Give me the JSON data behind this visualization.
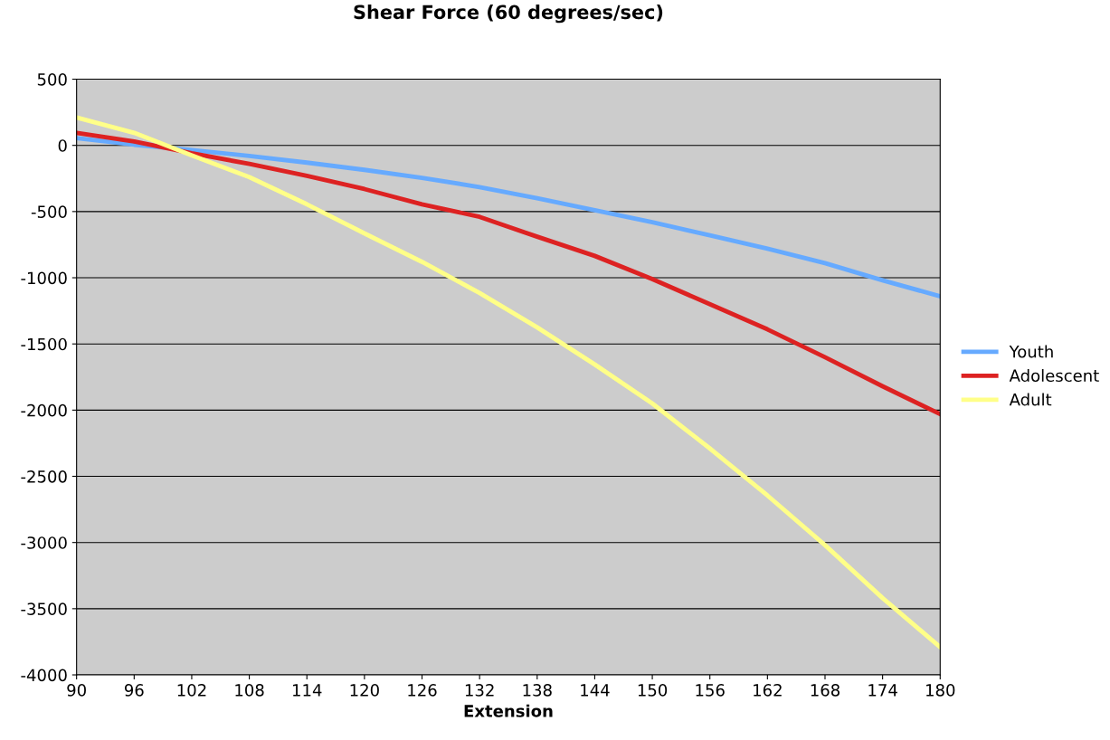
{
  "chart_data": {
    "type": "line",
    "title": "Shear Force (60 degrees/sec)",
    "xlabel": "Extension",
    "x": [
      90,
      96,
      102,
      108,
      114,
      120,
      126,
      132,
      138,
      144,
      150,
      156,
      162,
      168,
      174,
      180
    ],
    "series": [
      {
        "name": "Youth",
        "color": "#66aaff",
        "values": [
          55,
          5,
          -35,
          -80,
          -130,
          -185,
          -245,
          -315,
          -400,
          -490,
          -580,
          -680,
          -780,
          -890,
          -1020,
          -1140
        ]
      },
      {
        "name": "Adolescent",
        "color": "#dd2222",
        "values": [
          95,
          30,
          -60,
          -140,
          -230,
          -330,
          -445,
          -540,
          -690,
          -835,
          -1010,
          -1200,
          -1390,
          -1600,
          -1820,
          -2030
        ]
      },
      {
        "name": "Adult",
        "color": "#ffff88",
        "values": [
          210,
          95,
          -75,
          -240,
          -445,
          -665,
          -880,
          -1115,
          -1375,
          -1655,
          -1950,
          -2290,
          -2645,
          -3020,
          -3420,
          -3790
        ]
      }
    ],
    "xlim": [
      90,
      180
    ],
    "xticks": [
      90,
      96,
      102,
      108,
      114,
      120,
      126,
      132,
      138,
      144,
      150,
      156,
      162,
      168,
      174,
      180
    ],
    "ylim": [
      -4000,
      500
    ],
    "yticks": [
      -4000,
      -3500,
      -3000,
      -2500,
      -2000,
      -1500,
      -1000,
      -500,
      0,
      500
    ],
    "grid": "y",
    "legend": "right",
    "marker": "none",
    "line_style": "solid"
  }
}
